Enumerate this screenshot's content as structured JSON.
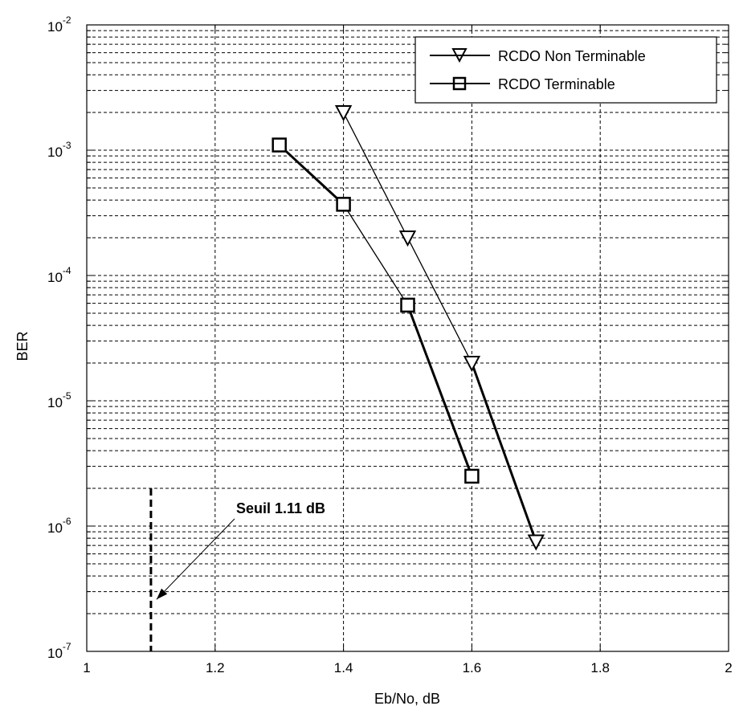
{
  "chart_data": {
    "type": "line",
    "xlabel": "Eb/No, dB",
    "ylabel": "BER",
    "xlim": [
      1,
      2
    ],
    "ylim": [
      1e-07,
      0.01
    ],
    "yscale": "log",
    "grid": true,
    "legend_position": "top-right",
    "x_ticks": [
      {
        "value": 1,
        "label": "1"
      },
      {
        "value": 1.2,
        "label": "1.2"
      },
      {
        "value": 1.4,
        "label": "1.4"
      },
      {
        "value": 1.6,
        "label": "1.6"
      },
      {
        "value": 1.8,
        "label": "1.8"
      },
      {
        "value": 2,
        "label": "2"
      }
    ],
    "y_ticks": [
      {
        "value": 1e-07,
        "base": "10",
        "exp": "-7"
      },
      {
        "value": 1e-06,
        "base": "10",
        "exp": "-6"
      },
      {
        "value": 1e-05,
        "base": "10",
        "exp": "-5"
      },
      {
        "value": 0.0001,
        "base": "10",
        "exp": "-4"
      },
      {
        "value": 0.001,
        "base": "10",
        "exp": "-3"
      },
      {
        "value": 0.01,
        "base": "10",
        "exp": "-2"
      }
    ],
    "series": [
      {
        "name": "RCDO Non Terminable",
        "marker": "triangle-down",
        "color": "#000000",
        "x": [
          1.4,
          1.5,
          1.6,
          1.7
        ],
        "y": [
          0.002,
          0.0002,
          2e-05,
          7.5e-07
        ]
      },
      {
        "name": "RCDO Terminable",
        "marker": "square",
        "color": "#000000",
        "x": [
          1.3,
          1.4,
          1.5,
          1.6
        ],
        "y": [
          0.0011,
          0.00037,
          5.8e-05,
          2.5e-06
        ]
      }
    ],
    "annotations": [
      {
        "text": "Seuil 1.11 dB",
        "threshold_x": 1.1,
        "threshold_y_top": 2e-06,
        "arrow_target": [
          1.1,
          2.6e-07
        ]
      }
    ]
  }
}
